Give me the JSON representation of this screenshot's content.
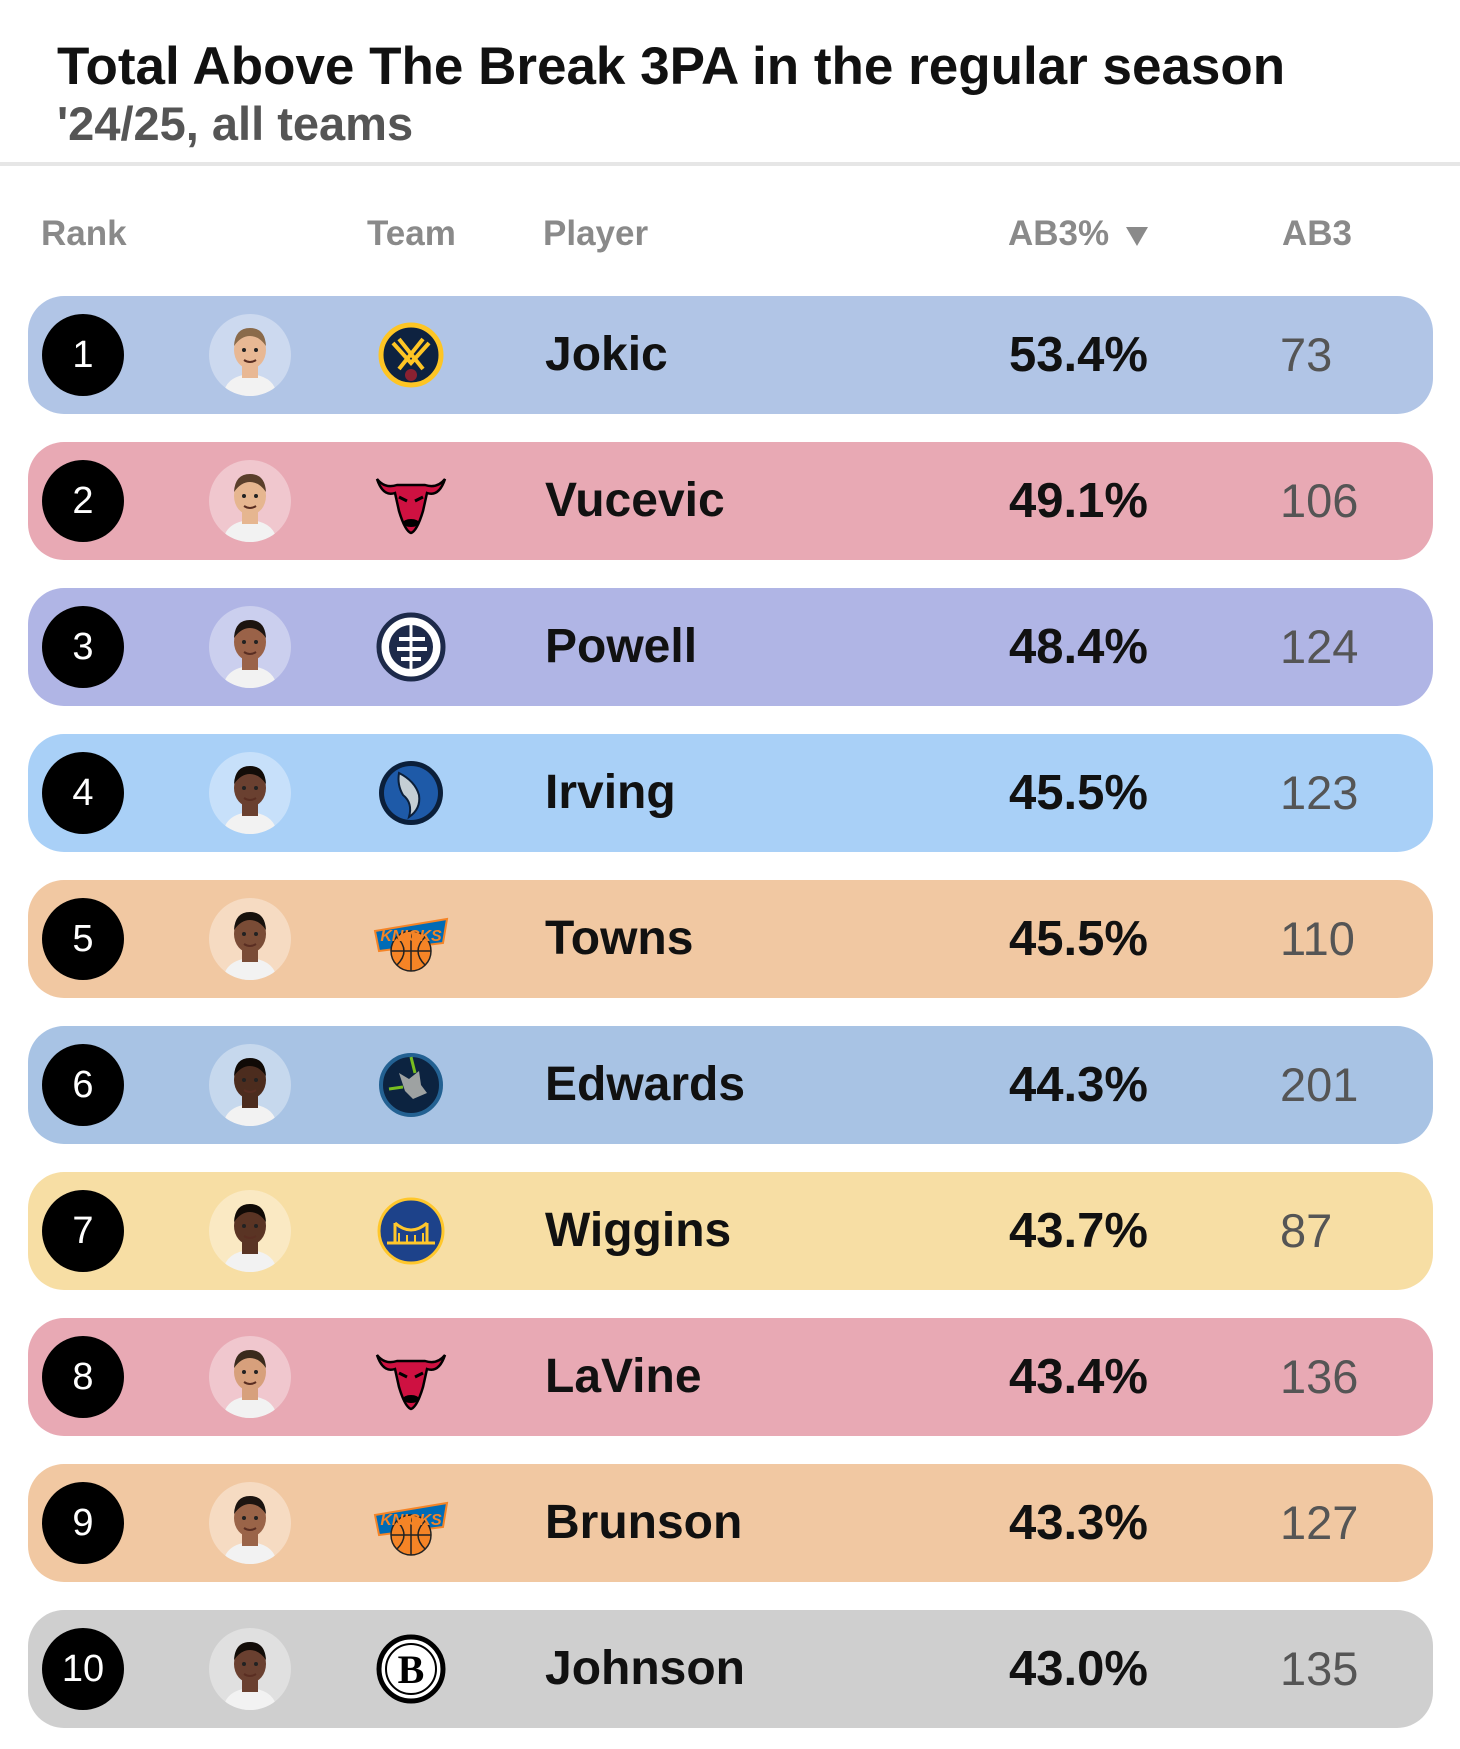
{
  "header": {
    "title": "Total Above The Break 3PA in the regular season",
    "subtitle": "'24/25, all teams"
  },
  "columns": {
    "rank": "Rank",
    "team": "Team",
    "player": "Player",
    "ab3_pct": "AB3%",
    "ab3_pct_sort_icon": "sort-desc-icon",
    "ab3": "AB3"
  },
  "rows": [
    {
      "rank": "1",
      "team": "nuggets",
      "player": "Jokic",
      "ab3_pct": "53.4%",
      "ab3": "73",
      "color": "#b1c5e6",
      "skin": "#e8b894",
      "hair": "#8a6a4a"
    },
    {
      "rank": "2",
      "team": "bulls",
      "player": "Vucevic",
      "ab3_pct": "49.1%",
      "ab3": "106",
      "color": "#e8a9b4",
      "skin": "#e6b690",
      "hair": "#5a3f2b"
    },
    {
      "rank": "3",
      "team": "clippers",
      "player": "Powell",
      "ab3_pct": "48.4%",
      "ab3": "124",
      "color": "#b0b5e5",
      "skin": "#9a6248",
      "hair": "#1c1410"
    },
    {
      "rank": "4",
      "team": "mavericks",
      "player": "Irving",
      "ab3_pct": "45.5%",
      "ab3": "123",
      "color": "#a9d0f7",
      "skin": "#6a4030",
      "hair": "#120c08"
    },
    {
      "rank": "5",
      "team": "knicks",
      "player": "Towns",
      "ab3_pct": "45.5%",
      "ab3": "110",
      "color": "#f1c8a2",
      "skin": "#7a4c36",
      "hair": "#17110c"
    },
    {
      "rank": "6",
      "team": "timberwolves",
      "player": "Edwards",
      "ab3_pct": "44.3%",
      "ab3": "201",
      "color": "#a8c3e4",
      "skin": "#4c2c1e",
      "hair": "#100a06"
    },
    {
      "rank": "7",
      "team": "warriors",
      "player": "Wiggins",
      "ab3_pct": "43.7%",
      "ab3": "87",
      "color": "#f7dea4",
      "skin": "#5a3424",
      "hair": "#100a06"
    },
    {
      "rank": "8",
      "team": "bulls",
      "player": "LaVine",
      "ab3_pct": "43.4%",
      "ab3": "136",
      "color": "#e8a9b4",
      "skin": "#d7a07c",
      "hair": "#3a2a1c"
    },
    {
      "rank": "9",
      "team": "knicks",
      "player": "Brunson",
      "ab3_pct": "43.3%",
      "ab3": "127",
      "color": "#f1c8a2",
      "skin": "#9a6448",
      "hair": "#1c1410"
    },
    {
      "rank": "10",
      "team": "nets",
      "player": "Johnson",
      "ab3_pct": "43.0%",
      "ab3": "135",
      "color": "#cfcfcf",
      "skin": "#6a4030",
      "hair": "#120c08"
    }
  ]
}
